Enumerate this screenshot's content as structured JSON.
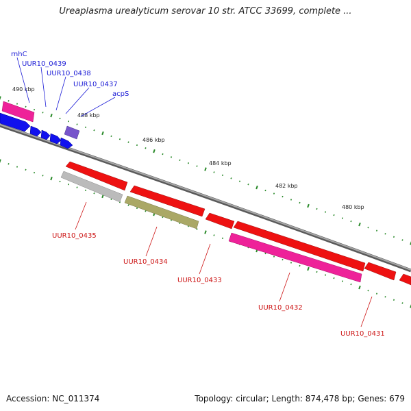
{
  "title": "Ureaplasma urealyticum serovar 10 str. ATCC 33699, complete ...",
  "footer": {
    "accession": "Accession: NC_011374",
    "summary": "Topology: circular; Length: 874,478 bp; Genes: 679"
  },
  "colors": {
    "backbone": "#888888",
    "tick": "#2a8a2a",
    "forward_label": "#1a1ad6",
    "reverse_label": "#cc1111",
    "red": "#ee1111",
    "magenta": "#ee2299",
    "blue": "#1111ee",
    "purple": "#7755cc",
    "gray": "#bbbbbb",
    "olive": "#aaa866"
  },
  "scale_labels": [
    "490 kbp",
    "488 kbp",
    "486 kbp",
    "484 kbp",
    "482 kbp",
    "480 kbp"
  ],
  "forward_gene_labels": [
    "rnhC",
    "UUR10_0439",
    "UUR10_0438",
    "UUR10_0437",
    "acpS"
  ],
  "reverse_gene_labels": [
    "UUR10_0435",
    "UUR10_0434",
    "UUR10_0433",
    "UUR10_0432",
    "UUR10_0431"
  ]
}
